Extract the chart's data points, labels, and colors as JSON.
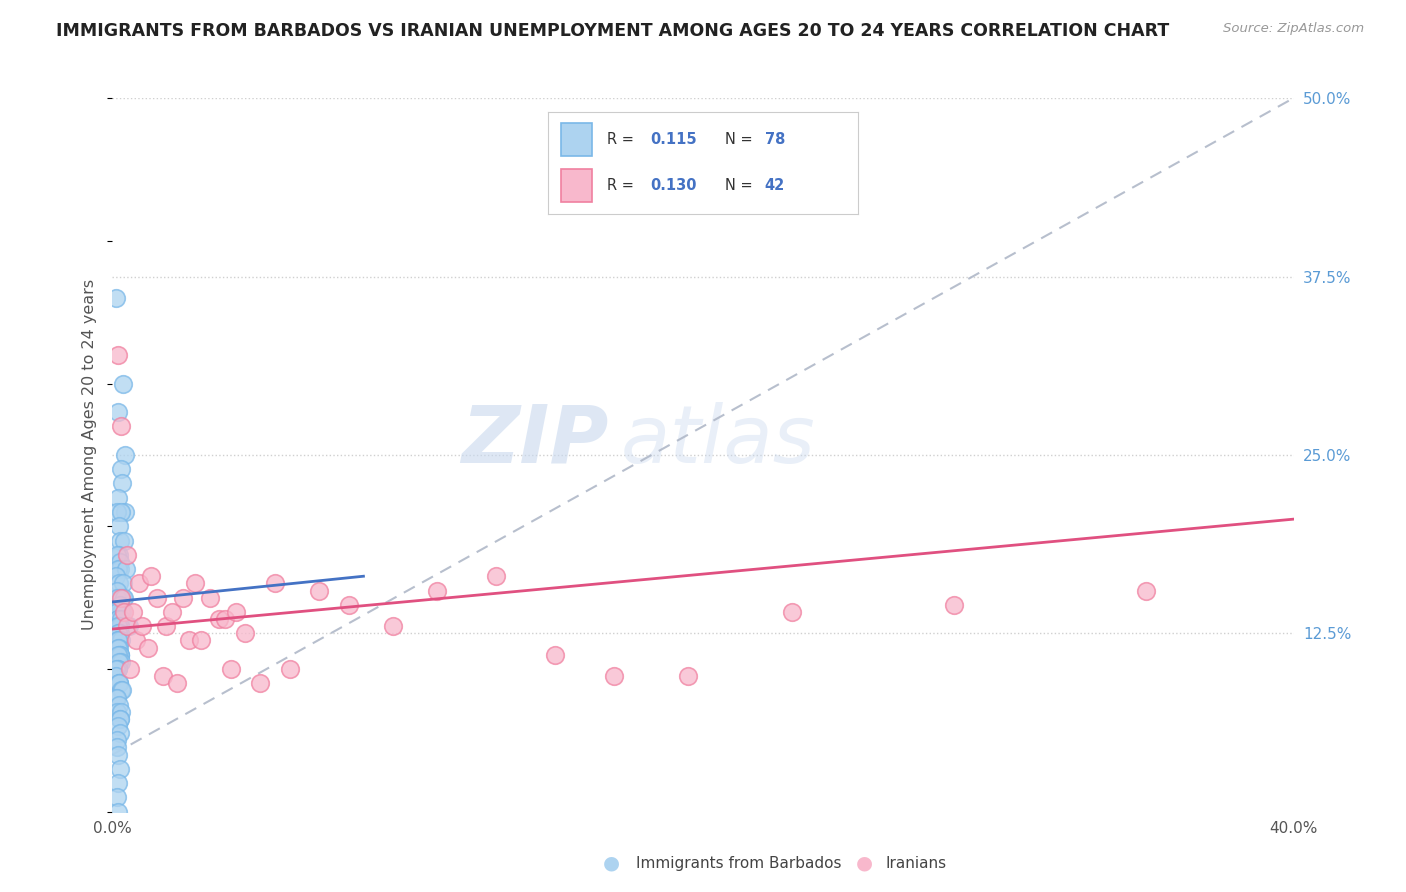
{
  "title": "IMMIGRANTS FROM BARBADOS VS IRANIAN UNEMPLOYMENT AMONG AGES 20 TO 24 YEARS CORRELATION CHART",
  "source": "Source: ZipAtlas.com",
  "ylabel": "Unemployment Among Ages 20 to 24 years",
  "xlim": [
    0.0,
    0.4
  ],
  "ylim": [
    0.0,
    0.5
  ],
  "ytick_labels_right": [
    "12.5%",
    "25.0%",
    "37.5%",
    "50.0%"
  ],
  "yticks_right": [
    0.125,
    0.25,
    0.375,
    0.5
  ],
  "barbados_color": "#7ab8e8",
  "barbados_fill": "#add3f0",
  "iranian_color": "#f080a0",
  "iranian_fill": "#f8b8cc",
  "R_barbados": 0.115,
  "N_barbados": 78,
  "R_iranian": 0.13,
  "N_iranian": 42,
  "legend_label_1": "Immigrants from Barbados",
  "legend_label_2": "Iranians",
  "watermark_zip": "ZIP",
  "watermark_atlas": "atlas",
  "background_color": "#ffffff",
  "grid_color": "#d0d0d0",
  "title_color": "#222222",
  "axis_label_color": "#555555",
  "trend_blue": "#4472c4",
  "trend_pink": "#e05080",
  "trend_dash": "#b0b8c8",
  "barbados_scatter_x": [
    0.002,
    0.003,
    0.002,
    0.004,
    0.002,
    0.003,
    0.002,
    0.005,
    0.002,
    0.003,
    0.002,
    0.002,
    0.004,
    0.003,
    0.002,
    0.002,
    0.003,
    0.002,
    0.004,
    0.002,
    0.002,
    0.003,
    0.002,
    0.002,
    0.003,
    0.002,
    0.004,
    0.002,
    0.003,
    0.003,
    0.002,
    0.002,
    0.002,
    0.003,
    0.002,
    0.005,
    0.002,
    0.002,
    0.002,
    0.003,
    0.002,
    0.002,
    0.002,
    0.003,
    0.002,
    0.002,
    0.002,
    0.002,
    0.003,
    0.002,
    0.002,
    0.003,
    0.002,
    0.002,
    0.002,
    0.002,
    0.002,
    0.002,
    0.002,
    0.002,
    0.002,
    0.003,
    0.002,
    0.002,
    0.002,
    0.002,
    0.002,
    0.002,
    0.002,
    0.002,
    0.002,
    0.002,
    0.002,
    0.002,
    0.002,
    0.002,
    0.002,
    0.002
  ],
  "barbados_scatter_y": [
    0.36,
    0.3,
    0.28,
    0.25,
    0.24,
    0.23,
    0.22,
    0.21,
    0.21,
    0.21,
    0.2,
    0.19,
    0.19,
    0.18,
    0.18,
    0.175,
    0.17,
    0.17,
    0.17,
    0.165,
    0.16,
    0.16,
    0.155,
    0.15,
    0.15,
    0.15,
    0.15,
    0.145,
    0.14,
    0.14,
    0.14,
    0.135,
    0.135,
    0.135,
    0.13,
    0.13,
    0.13,
    0.13,
    0.125,
    0.125,
    0.125,
    0.12,
    0.12,
    0.12,
    0.12,
    0.115,
    0.115,
    0.11,
    0.11,
    0.11,
    0.11,
    0.105,
    0.105,
    0.1,
    0.1,
    0.1,
    0.095,
    0.09,
    0.09,
    0.09,
    0.085,
    0.085,
    0.08,
    0.08,
    0.075,
    0.07,
    0.07,
    0.065,
    0.065,
    0.06,
    0.055,
    0.05,
    0.045,
    0.04,
    0.03,
    0.02,
    0.01,
    0.0
  ],
  "iranian_scatter_x": [
    0.002,
    0.003,
    0.003,
    0.004,
    0.005,
    0.005,
    0.006,
    0.007,
    0.008,
    0.009,
    0.01,
    0.012,
    0.013,
    0.015,
    0.017,
    0.018,
    0.02,
    0.022,
    0.024,
    0.026,
    0.028,
    0.03,
    0.033,
    0.036,
    0.038,
    0.04,
    0.042,
    0.045,
    0.05,
    0.055,
    0.06,
    0.07,
    0.08,
    0.095,
    0.11,
    0.13,
    0.15,
    0.17,
    0.195,
    0.23,
    0.285,
    0.35
  ],
  "iranian_scatter_y": [
    0.32,
    0.27,
    0.15,
    0.14,
    0.13,
    0.18,
    0.1,
    0.14,
    0.12,
    0.16,
    0.13,
    0.115,
    0.165,
    0.15,
    0.095,
    0.13,
    0.14,
    0.09,
    0.15,
    0.12,
    0.16,
    0.12,
    0.15,
    0.135,
    0.135,
    0.1,
    0.14,
    0.125,
    0.09,
    0.16,
    0.1,
    0.155,
    0.145,
    0.13,
    0.155,
    0.165,
    0.11,
    0.095,
    0.095,
    0.14,
    0.145,
    0.155
  ],
  "barbados_trend_x": [
    0.0,
    0.085
  ],
  "barbados_trend_y": [
    0.147,
    0.165
  ],
  "iranian_trend_x": [
    0.0,
    0.4
  ],
  "iranian_trend_y": [
    0.128,
    0.205
  ],
  "dash_trend_x": [
    0.0,
    0.4
  ],
  "dash_trend_y": [
    0.04,
    0.5
  ]
}
